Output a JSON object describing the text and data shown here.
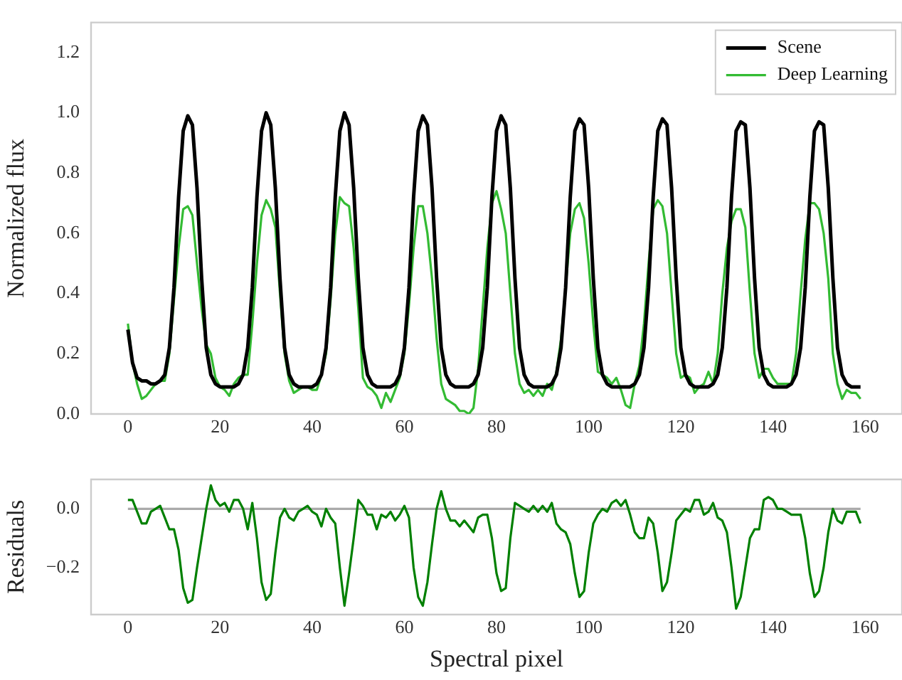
{
  "chart_data": [
    {
      "type": "line",
      "ylabel": "Normalized flux",
      "legend": "top right",
      "grid": false,
      "marker": "none",
      "line_style": "solid",
      "x": [
        0,
        1,
        2,
        3,
        4,
        5,
        6,
        7,
        8,
        9,
        10,
        11,
        12,
        13,
        14,
        15,
        16,
        17,
        18,
        19,
        20,
        21,
        22,
        23,
        24,
        25,
        26,
        27,
        28,
        29,
        30,
        31,
        32,
        33,
        34,
        35,
        36,
        37,
        38,
        39,
        40,
        41,
        42,
        43,
        44,
        45,
        46,
        47,
        48,
        49,
        50,
        51,
        52,
        53,
        54,
        55,
        56,
        57,
        58,
        59,
        60,
        61,
        62,
        63,
        64,
        65,
        66,
        67,
        68,
        69,
        70,
        71,
        72,
        73,
        74,
        75,
        76,
        77,
        78,
        79,
        80,
        81,
        82,
        83,
        84,
        85,
        86,
        87,
        88,
        89,
        90,
        91,
        92,
        93,
        94,
        95,
        96,
        97,
        98,
        99,
        100,
        101,
        102,
        103,
        104,
        105,
        106,
        107,
        108,
        109,
        110,
        111,
        112,
        113,
        114,
        115,
        116,
        117,
        118,
        119,
        120,
        121,
        122,
        123,
        124,
        125,
        126,
        127,
        128,
        129,
        130,
        131,
        132,
        133,
        134,
        135,
        136,
        137,
        138,
        139,
        140,
        141,
        142,
        143,
        144,
        145,
        146,
        147,
        148,
        149,
        150,
        151,
        152,
        153,
        154,
        155,
        156,
        157,
        158,
        159
      ],
      "xlim": [
        -8,
        168
      ],
      "xticks": [
        0,
        20,
        40,
        60,
        80,
        100,
        120,
        140,
        160
      ],
      "ylim": [
        0,
        1.3
      ],
      "yticks": [
        {
          "value": 0,
          "label": "0.0"
        },
        {
          "value": 0.2,
          "label": "0.2"
        },
        {
          "value": 0.4,
          "label": "0.4"
        },
        {
          "value": 0.6,
          "label": "0.6"
        },
        {
          "value": 0.8,
          "label": "0.8"
        },
        {
          "value": 1,
          "label": "1.0"
        },
        {
          "value": 1.2,
          "label": "1.2"
        }
      ],
      "series": [
        {
          "name": "Scene",
          "color": "#000000",
          "values": [
            0.28,
            0.17,
            0.12,
            0.11,
            0.11,
            0.1,
            0.1,
            0.11,
            0.13,
            0.22,
            0.42,
            0.72,
            0.94,
            0.99,
            0.96,
            0.75,
            0.45,
            0.22,
            0.13,
            0.1,
            0.09,
            0.09,
            0.09,
            0.09,
            0.1,
            0.13,
            0.22,
            0.42,
            0.72,
            0.94,
            1.0,
            0.96,
            0.75,
            0.45,
            0.22,
            0.13,
            0.1,
            0.09,
            0.09,
            0.09,
            0.09,
            0.1,
            0.13,
            0.22,
            0.42,
            0.72,
            0.94,
            1.0,
            0.96,
            0.75,
            0.45,
            0.22,
            0.13,
            0.1,
            0.09,
            0.09,
            0.09,
            0.09,
            0.1,
            0.13,
            0.22,
            0.42,
            0.72,
            0.94,
            0.99,
            0.96,
            0.75,
            0.45,
            0.22,
            0.13,
            0.1,
            0.09,
            0.09,
            0.09,
            0.09,
            0.1,
            0.13,
            0.22,
            0.42,
            0.72,
            0.94,
            0.99,
            0.96,
            0.75,
            0.45,
            0.22,
            0.13,
            0.1,
            0.09,
            0.09,
            0.09,
            0.09,
            0.1,
            0.13,
            0.22,
            0.42,
            0.72,
            0.94,
            0.98,
            0.96,
            0.75,
            0.45,
            0.22,
            0.13,
            0.1,
            0.09,
            0.09,
            0.09,
            0.09,
            0.09,
            0.1,
            0.13,
            0.22,
            0.42,
            0.72,
            0.94,
            0.98,
            0.96,
            0.75,
            0.45,
            0.22,
            0.13,
            0.1,
            0.09,
            0.09,
            0.09,
            0.09,
            0.1,
            0.13,
            0.22,
            0.42,
            0.72,
            0.94,
            0.97,
            0.96,
            0.75,
            0.45,
            0.22,
            0.13,
            0.1,
            0.09,
            0.09,
            0.09,
            0.09,
            0.1,
            0.13,
            0.22,
            0.42,
            0.72,
            0.94,
            0.97,
            0.96,
            0.75,
            0.45,
            0.22,
            0.13,
            0.1,
            0.09,
            0.09,
            0.09
          ]
        },
        {
          "name": "Deep Learning",
          "color": "#33bb33",
          "values": [
            0.3,
            0.17,
            0.1,
            0.05,
            0.06,
            0.08,
            0.1,
            0.11,
            0.11,
            0.2,
            0.38,
            0.55,
            0.68,
            0.69,
            0.66,
            0.5,
            0.35,
            0.23,
            0.2,
            0.12,
            0.09,
            0.08,
            0.06,
            0.1,
            0.12,
            0.13,
            0.13,
            0.3,
            0.5,
            0.66,
            0.71,
            0.68,
            0.62,
            0.4,
            0.2,
            0.11,
            0.07,
            0.08,
            0.09,
            0.09,
            0.08,
            0.08,
            0.13,
            0.2,
            0.38,
            0.6,
            0.72,
            0.7,
            0.69,
            0.55,
            0.35,
            0.12,
            0.09,
            0.08,
            0.06,
            0.02,
            0.07,
            0.04,
            0.08,
            0.12,
            0.2,
            0.36,
            0.55,
            0.69,
            0.69,
            0.6,
            0.45,
            0.25,
            0.1,
            0.05,
            0.04,
            0.03,
            0.01,
            0.01,
            0.0,
            0.02,
            0.15,
            0.35,
            0.55,
            0.7,
            0.74,
            0.68,
            0.6,
            0.4,
            0.2,
            0.1,
            0.07,
            0.08,
            0.06,
            0.08,
            0.06,
            0.1,
            0.08,
            0.14,
            0.25,
            0.42,
            0.6,
            0.68,
            0.7,
            0.65,
            0.5,
            0.3,
            0.14,
            0.13,
            0.12,
            0.1,
            0.12,
            0.08,
            0.03,
            0.02,
            0.1,
            0.16,
            0.3,
            0.5,
            0.68,
            0.71,
            0.69,
            0.6,
            0.4,
            0.2,
            0.12,
            0.13,
            0.12,
            0.07,
            0.09,
            0.1,
            0.14,
            0.1,
            0.2,
            0.4,
            0.55,
            0.64,
            0.68,
            0.68,
            0.62,
            0.4,
            0.2,
            0.12,
            0.15,
            0.15,
            0.12,
            0.1,
            0.1,
            0.1,
            0.1,
            0.2,
            0.4,
            0.58,
            0.7,
            0.7,
            0.68,
            0.6,
            0.45,
            0.2,
            0.1,
            0.05,
            0.08,
            0.07,
            0.07,
            0.05
          ]
        }
      ]
    },
    {
      "type": "line",
      "ylabel": "Residuals",
      "xlabel": "Spectral pixel",
      "grid": false,
      "marker": "none",
      "line_style": "solid",
      "x": [
        0,
        1,
        2,
        3,
        4,
        5,
        6,
        7,
        8,
        9,
        10,
        11,
        12,
        13,
        14,
        15,
        16,
        17,
        18,
        19,
        20,
        21,
        22,
        23,
        24,
        25,
        26,
        27,
        28,
        29,
        30,
        31,
        32,
        33,
        34,
        35,
        36,
        37,
        38,
        39,
        40,
        41,
        42,
        43,
        44,
        45,
        46,
        47,
        48,
        49,
        50,
        51,
        52,
        53,
        54,
        55,
        56,
        57,
        58,
        59,
        60,
        61,
        62,
        63,
        64,
        65,
        66,
        67,
        68,
        69,
        70,
        71,
        72,
        73,
        74,
        75,
        76,
        77,
        78,
        79,
        80,
        81,
        82,
        83,
        84,
        85,
        86,
        87,
        88,
        89,
        90,
        91,
        92,
        93,
        94,
        95,
        96,
        97,
        98,
        99,
        100,
        101,
        102,
        103,
        104,
        105,
        106,
        107,
        108,
        109,
        110,
        111,
        112,
        113,
        114,
        115,
        116,
        117,
        118,
        119,
        120,
        121,
        122,
        123,
        124,
        125,
        126,
        127,
        128,
        129,
        130,
        131,
        132,
        133,
        134,
        135,
        136,
        137,
        138,
        139,
        140,
        141,
        142,
        143,
        144,
        145,
        146,
        147,
        148,
        149,
        150,
        151,
        152,
        153,
        154,
        155,
        156,
        157,
        158,
        159
      ],
      "xlim": [
        -8,
        168
      ],
      "xticks": [
        0,
        20,
        40,
        60,
        80,
        100,
        120,
        140,
        160
      ],
      "ylim": [
        -0.36,
        0.1
      ],
      "yticks": [
        {
          "value": -0.2,
          "label": "−0.2"
        },
        {
          "value": 0,
          "label": "0.0"
        }
      ],
      "ref_lines": [
        {
          "axis": "y",
          "value": 0,
          "color": "#aaaaaa"
        }
      ],
      "series": [
        {
          "color": "#008000",
          "values": [
            0.03,
            0.03,
            -0.01,
            -0.05,
            -0.05,
            -0.01,
            0.0,
            0.01,
            -0.03,
            -0.07,
            -0.07,
            -0.14,
            -0.27,
            -0.32,
            -0.31,
            -0.2,
            -0.1,
            0.0,
            0.08,
            0.03,
            0.01,
            0.02,
            -0.01,
            0.03,
            0.03,
            0.0,
            -0.07,
            0.02,
            -0.1,
            -0.25,
            -0.31,
            -0.29,
            -0.15,
            -0.03,
            0.0,
            -0.03,
            -0.04,
            -0.01,
            0.0,
            0.01,
            -0.01,
            -0.02,
            -0.06,
            0.0,
            -0.03,
            -0.05,
            -0.2,
            -0.33,
            -0.22,
            -0.1,
            0.03,
            0.01,
            -0.02,
            -0.02,
            -0.07,
            -0.02,
            -0.03,
            -0.01,
            -0.04,
            -0.02,
            0.01,
            -0.03,
            -0.2,
            -0.3,
            -0.33,
            -0.25,
            -0.12,
            0.0,
            0.06,
            0.0,
            -0.04,
            -0.04,
            -0.06,
            -0.04,
            -0.06,
            -0.08,
            -0.03,
            -0.02,
            -0.02,
            -0.1,
            -0.22,
            -0.28,
            -0.27,
            -0.1,
            0.02,
            0.01,
            0.0,
            -0.01,
            0.01,
            -0.01,
            0.01,
            -0.01,
            0.02,
            -0.05,
            -0.07,
            -0.08,
            -0.12,
            -0.22,
            -0.3,
            -0.28,
            -0.15,
            -0.05,
            -0.02,
            0.0,
            -0.01,
            0.02,
            0.03,
            0.01,
            0.03,
            -0.02,
            -0.08,
            -0.1,
            -0.1,
            -0.03,
            -0.05,
            -0.15,
            -0.28,
            -0.25,
            -0.15,
            -0.04,
            -0.02,
            0.0,
            -0.01,
            0.03,
            0.03,
            -0.02,
            -0.01,
            0.02,
            -0.03,
            -0.04,
            -0.08,
            -0.2,
            -0.34,
            -0.3,
            -0.2,
            -0.1,
            -0.07,
            -0.07,
            0.03,
            0.04,
            0.03,
            0.0,
            0.0,
            -0.01,
            -0.02,
            -0.02,
            -0.02,
            -0.1,
            -0.22,
            -0.3,
            -0.28,
            -0.2,
            -0.08,
            0.0,
            -0.04,
            -0.05,
            -0.01,
            -0.01,
            -0.01,
            -0.05
          ]
        }
      ]
    }
  ]
}
